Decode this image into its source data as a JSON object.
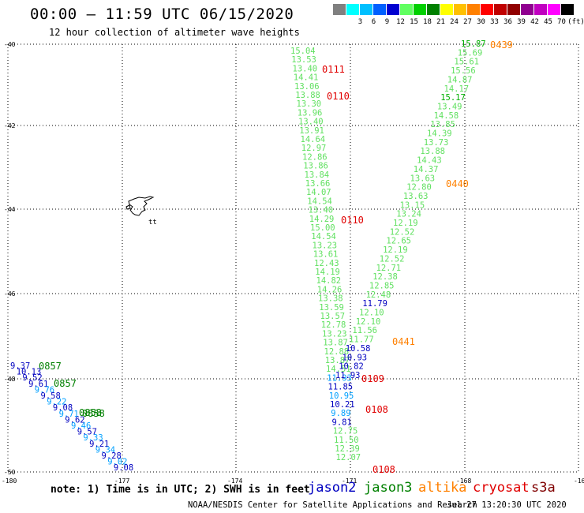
{
  "header": {
    "title": "00:00 – 11:59 UTC 06/15/2020",
    "subtitle": "12 hour collection of altimeter wave heights"
  },
  "legend": {
    "unit_label": "(ft)",
    "swatches": [
      {
        "color": "#808080",
        "label": ""
      },
      {
        "color": "#00ffff",
        "label": "3"
      },
      {
        "color": "#00c0ff",
        "label": "6"
      },
      {
        "color": "#0060ff",
        "label": "9"
      },
      {
        "color": "#0000d0",
        "label": "12"
      },
      {
        "color": "#60ff60",
        "label": "15"
      },
      {
        "color": "#00d000",
        "label": "18"
      },
      {
        "color": "#008000",
        "label": "21"
      },
      {
        "color": "#ffff00",
        "label": "24"
      },
      {
        "color": "#ffc000",
        "label": "27"
      },
      {
        "color": "#ff8000",
        "label": "30"
      },
      {
        "color": "#ff0000",
        "label": "33"
      },
      {
        "color": "#c00000",
        "label": "36"
      },
      {
        "color": "#900000",
        "label": "39"
      },
      {
        "color": "#900090",
        "label": "42"
      },
      {
        "color": "#c000c0",
        "label": "45"
      },
      {
        "color": "#ff00ff",
        "label": "70"
      },
      {
        "color": "#000000",
        "label": ""
      }
    ]
  },
  "axes": {
    "lat_labels": [
      "-40",
      "-42",
      "-44",
      "-46",
      "-48",
      "-50"
    ],
    "lon_labels": [
      "-180",
      "-177",
      "-174",
      "-171",
      "-168",
      "-16"
    ]
  },
  "map_features": {
    "island_marker": "tt"
  },
  "track_colors": {
    "light_green": "#60e060",
    "green": "#00b000",
    "dark_green": "#008000",
    "blue": "#0000c0",
    "light_blue": "#00a0ff",
    "orange": "#ff8000",
    "red": "#e00000"
  },
  "tracks": {
    "track_a_values": [
      "15.04",
      "13.53",
      "13.40",
      "14.41",
      "13.06",
      "13.88",
      "13.30",
      "13.96",
      "13.40",
      "13.91",
      "14.64",
      "12.97",
      "12.86",
      "13.86",
      "13.84",
      "13.66",
      "14.07",
      "14.54",
      "13.40",
      "14.29",
      "15.00",
      "14.54",
      "13.23",
      "13.61",
      "12.43",
      "14.19",
      "14.82",
      "14.26",
      "13.38",
      "13.59",
      "13.57",
      "12.78",
      "13.23",
      "13.87",
      "12.88",
      "13.87",
      "14.51",
      "11.93",
      "11.85",
      "10.95",
      "10.21",
      "9.89",
      "9.81",
      "12.75",
      "11.50",
      "12.39",
      "12.07"
    ],
    "track_a_times": [
      "0111",
      "0110",
      "0110",
      "0109",
      "0108",
      "0108"
    ],
    "track_b_values": [
      "15.87",
      "15.69",
      "15.61",
      "15.56",
      "14.87",
      "14.17",
      "15.17",
      "13.49",
      "14.58",
      "13.85",
      "14.39",
      "13.73",
      "13.88",
      "14.43",
      "14.37",
      "13.63",
      "12.80",
      "13.63",
      "13.15",
      "13.24",
      "12.19",
      "12.52",
      "12.65",
      "12.19",
      "12.52",
      "12.71",
      "12.38",
      "12.85",
      "12.48",
      "11.79",
      "12.10",
      "12.10",
      "11.56",
      "11.77",
      "10.58",
      "10.93",
      "10.82",
      "11.93"
    ],
    "track_b_times": [
      "0439",
      "0440",
      "0441"
    ],
    "track_c_values": [
      "9.37",
      "10.13",
      "9.52",
      "9.61",
      "9.76",
      "9.58",
      "9.22",
      "9.08",
      "9.71",
      "9.62",
      "9.46",
      "9.57",
      "9.33",
      "9.21",
      "9.34",
      "9.28",
      "9.02",
      "9.08"
    ],
    "track_c_times": [
      "0857",
      "0857",
      "0858",
      "0858"
    ]
  },
  "footer": {
    "note": "note: 1) Time is in UTC; 2) SWH is in feet",
    "satellites": [
      {
        "name": "jason2",
        "color": "#0000c0"
      },
      {
        "name": "jason3",
        "color": "#008000"
      },
      {
        "name": "altika",
        "color": "#ff8000"
      },
      {
        "name": "cryosat",
        "color": "#e00000"
      },
      {
        "name": "s3a",
        "color": "#800000"
      }
    ],
    "credit": "NOAA/NESDIS Center for Satellite Applications and Research",
    "timestamp": "Jul 27 13:20:30 UTC 2020"
  }
}
